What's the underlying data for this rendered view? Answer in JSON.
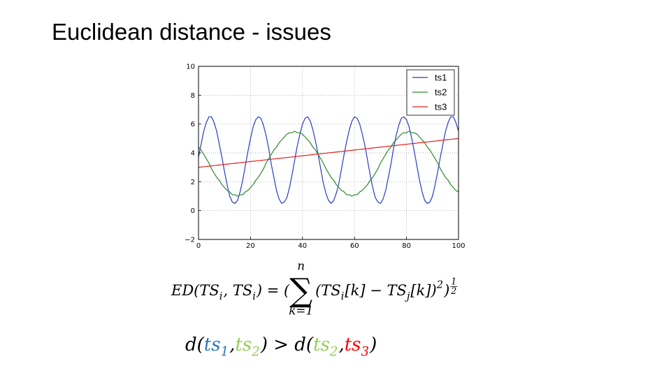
{
  "title": "Euclidean distance - issues",
  "chart_data": {
    "type": "line",
    "x": [
      0,
      1,
      2,
      3,
      4,
      5,
      6,
      7,
      8,
      9,
      10,
      11,
      12,
      13,
      14,
      15,
      16,
      17,
      18,
      19,
      20,
      21,
      22,
      23,
      24,
      25,
      26,
      27,
      28,
      29,
      30,
      31,
      32,
      33,
      34,
      35,
      36,
      37,
      38,
      39,
      40,
      41,
      42,
      43,
      44,
      45,
      46,
      47,
      48,
      49,
      50,
      51,
      52,
      53,
      54,
      55,
      56,
      57,
      58,
      59,
      60,
      61,
      62,
      63,
      64,
      65,
      66,
      67,
      68,
      69,
      70,
      71,
      72,
      73,
      74,
      75,
      76,
      77,
      78,
      79,
      80,
      81,
      82,
      83,
      84,
      85,
      86,
      87,
      88,
      89,
      90,
      91,
      92,
      93,
      94,
      95,
      96,
      97,
      98,
      99,
      100
    ],
    "series": [
      {
        "name": "ts1",
        "color": "#2a3cc4",
        "values": [
          3.7,
          4.6,
          5.5,
          6.1,
          6.5,
          6.5,
          6.1,
          5.5,
          4.6,
          3.7,
          2.7,
          1.8,
          1.0,
          0.6,
          0.5,
          0.7,
          1.3,
          2.1,
          3.1,
          4.1,
          5.0,
          5.8,
          6.3,
          6.5,
          6.4,
          5.9,
          5.2,
          4.3,
          3.2,
          2.3,
          1.4,
          0.8,
          0.5,
          0.6,
          0.9,
          1.6,
          2.5,
          3.5,
          4.5,
          5.3,
          6.0,
          6.4,
          6.5,
          6.2,
          5.6,
          4.8,
          3.9,
          2.9,
          1.9,
          1.2,
          0.7,
          0.5,
          0.7,
          1.2,
          1.9,
          2.9,
          3.9,
          4.8,
          5.6,
          6.2,
          6.5,
          6.4,
          6.0,
          5.3,
          4.5,
          3.5,
          2.5,
          1.6,
          0.9,
          0.6,
          0.5,
          0.8,
          1.4,
          2.3,
          3.2,
          4.3,
          5.2,
          5.9,
          6.4,
          6.5,
          6.3,
          5.8,
          5.0,
          4.1,
          3.1,
          2.1,
          1.3,
          0.7,
          0.5,
          0.6,
          1.0,
          1.8,
          2.7,
          3.7,
          4.6,
          5.5,
          6.1,
          6.5,
          6.5,
          6.1,
          5.5
        ]
      },
      {
        "name": "ts2",
        "color": "#2a8a2a",
        "values": [
          4.4,
          4.2,
          3.9,
          3.6,
          3.3,
          2.9,
          2.6,
          2.3,
          2.1,
          1.8,
          1.6,
          1.4,
          1.3,
          1.1,
          1.1,
          1.0,
          1.1,
          1.1,
          1.3,
          1.4,
          1.6,
          1.8,
          2.1,
          2.3,
          2.6,
          2.9,
          3.3,
          3.6,
          3.9,
          4.2,
          4.4,
          4.7,
          4.9,
          5.1,
          5.3,
          5.4,
          5.4,
          5.5,
          5.4,
          5.4,
          5.3,
          5.1,
          4.9,
          4.7,
          4.4,
          4.2,
          3.9,
          3.6,
          3.3,
          2.9,
          2.6,
          2.3,
          2.1,
          1.8,
          1.6,
          1.4,
          1.3,
          1.1,
          1.1,
          1.0,
          1.1,
          1.1,
          1.3,
          1.4,
          1.6,
          1.8,
          2.1,
          2.3,
          2.6,
          2.9,
          3.3,
          3.6,
          3.9,
          4.2,
          4.4,
          4.7,
          4.9,
          5.1,
          5.3,
          5.4,
          5.4,
          5.5,
          5.4,
          5.4,
          5.3,
          5.1,
          4.9,
          4.7,
          4.4,
          4.2,
          3.9,
          3.6,
          3.3,
          2.9,
          2.6,
          2.3,
          2.1,
          1.8,
          1.6,
          1.4,
          1.3
        ]
      },
      {
        "name": "ts3",
        "color": "#e02020",
        "values": [
          3,
          3.02,
          3.04,
          3.06,
          3.08,
          3.1,
          3.12,
          3.14,
          3.16,
          3.18,
          3.2,
          3.22,
          3.24,
          3.26,
          3.28,
          3.3,
          3.32,
          3.34,
          3.36,
          3.38,
          3.4,
          3.42,
          3.44,
          3.46,
          3.48,
          3.5,
          3.52,
          3.54,
          3.56,
          3.58,
          3.6,
          3.62,
          3.64,
          3.66,
          3.68,
          3.7,
          3.72,
          3.74,
          3.76,
          3.78,
          3.8,
          3.82,
          3.84,
          3.86,
          3.88,
          3.9,
          3.92,
          3.94,
          3.96,
          3.98,
          4,
          4.02,
          4.04,
          4.06,
          4.08,
          4.1,
          4.12,
          4.14,
          4.16,
          4.18,
          4.2,
          4.22,
          4.24,
          4.26,
          4.28,
          4.3,
          4.32,
          4.34,
          4.36,
          4.38,
          4.4,
          4.42,
          4.44,
          4.46,
          4.48,
          4.5,
          4.52,
          4.54,
          4.56,
          4.58,
          4.6,
          4.62,
          4.64,
          4.66,
          4.68,
          4.7,
          4.72,
          4.74,
          4.76,
          4.78,
          4.8,
          4.82,
          4.84,
          4.86,
          4.88,
          4.9,
          4.92,
          4.94,
          4.96,
          4.98,
          5
        ]
      }
    ],
    "xlim": [
      0,
      100
    ],
    "ylim": [
      -2,
      10
    ],
    "xticks": [
      0,
      20,
      40,
      60,
      80,
      100
    ],
    "yticks": [
      {
        "value": -2,
        "label": "−2"
      },
      0,
      2,
      4,
      6,
      8,
      10
    ],
    "grid": true,
    "legend": "upper right"
  },
  "formulas": [
    {
      "tokens": [
        {
          "text": "ED(TS"
        },
        {
          "text": "i",
          "pos": "sub"
        },
        {
          "text": ", TS"
        },
        {
          "text": "i",
          "pos": "sub"
        },
        {
          "text": ") = ("
        },
        {
          "text": "∑",
          "pos": "big"
        },
        {
          "text": "n",
          "pos": "above"
        },
        {
          "text": "k=1",
          "pos": "below"
        },
        {
          "text": "(TS"
        },
        {
          "text": "i",
          "pos": "sub"
        },
        {
          "text": "[k] − TS"
        },
        {
          "text": "j",
          "pos": "sub"
        },
        {
          "text": "[k])"
        },
        {
          "text": "2",
          "pos": "sup"
        },
        {
          "text": ")"
        },
        {
          "text": "1",
          "pos": "frac-top"
        },
        {
          "text": "2",
          "pos": "frac-bottom"
        }
      ]
    },
    {
      "tokens": [
        {
          "text": "d("
        },
        {
          "text": "ts",
          "color": "#2e75b6"
        },
        {
          "text": "1",
          "pos": "sub",
          "color": "#2e75b6"
        },
        {
          "text": ", "
        },
        {
          "text": "ts",
          "color": "#92d050"
        },
        {
          "text": "2",
          "pos": "sub",
          "color": "#92d050"
        },
        {
          "text": ") > d("
        },
        {
          "text": "ts",
          "color": "#92d050"
        },
        {
          "text": "2",
          "pos": "sub",
          "color": "#92d050"
        },
        {
          "text": ", "
        },
        {
          "text": "ts",
          "color": "#ff0000"
        },
        {
          "text": "3",
          "pos": "sub",
          "color": "#ff0000"
        },
        {
          "text": ")"
        }
      ]
    }
  ]
}
